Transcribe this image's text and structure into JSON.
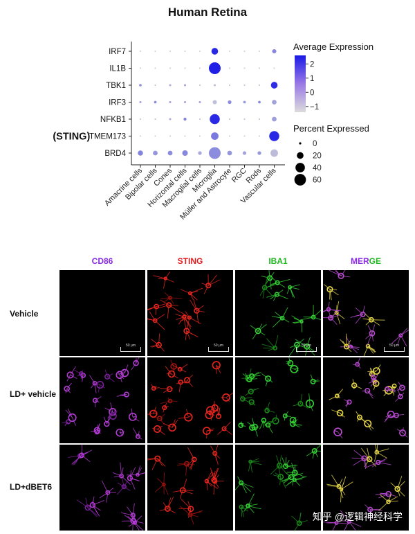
{
  "title": "Human Retina",
  "chart_data": {
    "type": "dotplot",
    "genes": [
      "IRF7",
      "IL1B",
      "TBK1",
      "IRF3",
      "NFKB1",
      "TMEM173",
      "BRD4"
    ],
    "gene_prefix": {
      "TMEM173": "(STING)"
    },
    "cell_types": [
      "Amacrine cells",
      "Bipolar cells",
      "Cones",
      "Horizontal cells",
      "Macroglial cells",
      "Microglia",
      "Müller and Astrocyte",
      "RGC",
      "Rods",
      "Vascular cells"
    ],
    "points": [
      {
        "gene": "IRF7",
        "cell": "Amacrine cells",
        "pct": 1,
        "avg": -1.3
      },
      {
        "gene": "IRF7",
        "cell": "Bipolar cells",
        "pct": 1,
        "avg": -1.3
      },
      {
        "gene": "IRF7",
        "cell": "Cones",
        "pct": 1,
        "avg": -1.3
      },
      {
        "gene": "IRF7",
        "cell": "Horizontal cells",
        "pct": 1,
        "avg": -1.3
      },
      {
        "gene": "IRF7",
        "cell": "Macroglial cells",
        "pct": 1,
        "avg": -1.3
      },
      {
        "gene": "IRF7",
        "cell": "Microglia",
        "pct": 20,
        "avg": 2.3
      },
      {
        "gene": "IRF7",
        "cell": "Müller and Astrocyte",
        "pct": 1,
        "avg": -1.3
      },
      {
        "gene": "IRF7",
        "cell": "RGC",
        "pct": 1,
        "avg": -1.3
      },
      {
        "gene": "IRF7",
        "cell": "Rods",
        "pct": 1,
        "avg": -1.3
      },
      {
        "gene": "IRF7",
        "cell": "Vascular cells",
        "pct": 8,
        "avg": 0.3
      },
      {
        "gene": "IL1B",
        "cell": "Amacrine cells",
        "pct": 1,
        "avg": -1.3
      },
      {
        "gene": "IL1B",
        "cell": "Bipolar cells",
        "pct": 1,
        "avg": -1.3
      },
      {
        "gene": "IL1B",
        "cell": "Cones",
        "pct": 1,
        "avg": -1.3
      },
      {
        "gene": "IL1B",
        "cell": "Horizontal cells",
        "pct": 1,
        "avg": -1.3
      },
      {
        "gene": "IL1B",
        "cell": "Macroglial cells",
        "pct": 1,
        "avg": -1.3
      },
      {
        "gene": "IL1B",
        "cell": "Microglia",
        "pct": 62,
        "avg": 2.5
      },
      {
        "gene": "IL1B",
        "cell": "Müller and Astrocyte",
        "pct": 1,
        "avg": -1.3
      },
      {
        "gene": "IL1B",
        "cell": "RGC",
        "pct": 1,
        "avg": -1.3
      },
      {
        "gene": "IL1B",
        "cell": "Rods",
        "pct": 1,
        "avg": -1.3
      },
      {
        "gene": "IL1B",
        "cell": "Vascular cells",
        "pct": 1,
        "avg": -1.3
      },
      {
        "gene": "TBK1",
        "cell": "Amacrine cells",
        "pct": 3,
        "avg": 0.0
      },
      {
        "gene": "TBK1",
        "cell": "Bipolar cells",
        "pct": 1,
        "avg": -1.0
      },
      {
        "gene": "TBK1",
        "cell": "Cones",
        "pct": 2,
        "avg": -0.5
      },
      {
        "gene": "TBK1",
        "cell": "Horizontal cells",
        "pct": 2,
        "avg": -0.3
      },
      {
        "gene": "TBK1",
        "cell": "Macroglial cells",
        "pct": 1,
        "avg": -1.0
      },
      {
        "gene": "TBK1",
        "cell": "Microglia",
        "pct": 2,
        "avg": -0.8
      },
      {
        "gene": "TBK1",
        "cell": "Müller and Astrocyte",
        "pct": 1,
        "avg": -1.0
      },
      {
        "gene": "TBK1",
        "cell": "RGC",
        "pct": 1,
        "avg": -1.0
      },
      {
        "gene": "TBK1",
        "cell": "Rods",
        "pct": 1,
        "avg": -1.0
      },
      {
        "gene": "TBK1",
        "cell": "Vascular cells",
        "pct": 20,
        "avg": 2.2
      },
      {
        "gene": "IRF3",
        "cell": "Amacrine cells",
        "pct": 2,
        "avg": -0.3
      },
      {
        "gene": "IRF3",
        "cell": "Bipolar cells",
        "pct": 3,
        "avg": 0.2
      },
      {
        "gene": "IRF3",
        "cell": "Cones",
        "pct": 2,
        "avg": -0.3
      },
      {
        "gene": "IRF3",
        "cell": "Horizontal cells",
        "pct": 2,
        "avg": -0.3
      },
      {
        "gene": "IRF3",
        "cell": "Macroglial cells",
        "pct": 2,
        "avg": -0.3
      },
      {
        "gene": "IRF3",
        "cell": "Microglia",
        "pct": 8,
        "avg": -0.9
      },
      {
        "gene": "IRF3",
        "cell": "Müller and Astrocyte",
        "pct": 6,
        "avg": 0.2
      },
      {
        "gene": "IRF3",
        "cell": "RGC",
        "pct": 3,
        "avg": 0.0
      },
      {
        "gene": "IRF3",
        "cell": "Rods",
        "pct": 3,
        "avg": 0.3
      },
      {
        "gene": "IRF3",
        "cell": "Vascular cells",
        "pct": 10,
        "avg": -0.3
      },
      {
        "gene": "NFKB1",
        "cell": "Amacrine cells",
        "pct": 1,
        "avg": -1.0
      },
      {
        "gene": "NFKB1",
        "cell": "Bipolar cells",
        "pct": 1,
        "avg": -1.0
      },
      {
        "gene": "NFKB1",
        "cell": "Cones",
        "pct": 2,
        "avg": -0.5
      },
      {
        "gene": "NFKB1",
        "cell": "Horizontal cells",
        "pct": 4,
        "avg": 0.4
      },
      {
        "gene": "NFKB1",
        "cell": "Macroglial cells",
        "pct": 1,
        "avg": -1.0
      },
      {
        "gene": "NFKB1",
        "cell": "Microglia",
        "pct": 45,
        "avg": 2.3
      },
      {
        "gene": "NFKB1",
        "cell": "Müller and Astrocyte",
        "pct": 1,
        "avg": -1.0
      },
      {
        "gene": "NFKB1",
        "cell": "RGC",
        "pct": 1,
        "avg": -1.0
      },
      {
        "gene": "NFKB1",
        "cell": "Rods",
        "pct": 1,
        "avg": -1.0
      },
      {
        "gene": "NFKB1",
        "cell": "Vascular cells",
        "pct": 10,
        "avg": -0.2
      },
      {
        "gene": "TMEM173",
        "cell": "Amacrine cells",
        "pct": 1,
        "avg": -1.3
      },
      {
        "gene": "TMEM173",
        "cell": "Bipolar cells",
        "pct": 1,
        "avg": -1.3
      },
      {
        "gene": "TMEM173",
        "cell": "Cones",
        "pct": 1,
        "avg": -1.3
      },
      {
        "gene": "TMEM173",
        "cell": "Horizontal cells",
        "pct": 1,
        "avg": -1.3
      },
      {
        "gene": "TMEM173",
        "cell": "Macroglial cells",
        "pct": 1,
        "avg": -1.3
      },
      {
        "gene": "TMEM173",
        "cell": "Microglia",
        "pct": 25,
        "avg": 0.6
      },
      {
        "gene": "TMEM173",
        "cell": "Müller and Astrocyte",
        "pct": 1,
        "avg": -1.3
      },
      {
        "gene": "TMEM173",
        "cell": "RGC",
        "pct": 1,
        "avg": -1.3
      },
      {
        "gene": "TMEM173",
        "cell": "Rods",
        "pct": 1,
        "avg": -1.3
      },
      {
        "gene": "TMEM173",
        "cell": "Vascular cells",
        "pct": 45,
        "avg": 2.3
      },
      {
        "gene": "BRD4",
        "cell": "Amacrine cells",
        "pct": 12,
        "avg": 0.4
      },
      {
        "gene": "BRD4",
        "cell": "Bipolar cells",
        "pct": 10,
        "avg": 0.0
      },
      {
        "gene": "BRD4",
        "cell": "Cones",
        "pct": 10,
        "avg": 0.2
      },
      {
        "gene": "BRD4",
        "cell": "Horizontal cells",
        "pct": 14,
        "avg": 0.3
      },
      {
        "gene": "BRD4",
        "cell": "Macroglial cells",
        "pct": 6,
        "avg": -0.4
      },
      {
        "gene": "BRD4",
        "cell": "Microglia",
        "pct": 62,
        "avg": 0.2
      },
      {
        "gene": "BRD4",
        "cell": "Müller and Astrocyte",
        "pct": 10,
        "avg": 0.0
      },
      {
        "gene": "BRD4",
        "cell": "RGC",
        "pct": 6,
        "avg": -0.3
      },
      {
        "gene": "BRD4",
        "cell": "Rods",
        "pct": 6,
        "avg": 0.0
      },
      {
        "gene": "BRD4",
        "cell": "Vascular cells",
        "pct": 25,
        "avg": -0.8
      }
    ],
    "color_legend": {
      "title": "Average Expression",
      "ticks": [
        2,
        1,
        0,
        -1
      ],
      "tick_labels": [
        "2",
        "1",
        "0",
        "−1"
      ],
      "range": [
        -1.4,
        2.6
      ],
      "low_color": "#d8d8d8",
      "high_color": "#1a1ae6"
    },
    "size_legend": {
      "title": "Percent Expressed",
      "values": [
        0,
        20,
        40,
        60
      ]
    }
  },
  "micrograph": {
    "columns": [
      {
        "label": "CD86",
        "color": "#8a2be2"
      },
      {
        "label": "STING",
        "color": "#e02020"
      },
      {
        "label": "IBA1",
        "color": "#22b822"
      },
      {
        "label_parts": [
          "MER",
          "GE"
        ],
        "colors": [
          "#8a2be2",
          "#22b822"
        ]
      }
    ],
    "rows": [
      "Vehicle",
      "LD+ vehicle",
      "LD+dBET6"
    ],
    "scale_bar": "50 μm"
  },
  "watermark": "知乎 @逻辑神经科学"
}
